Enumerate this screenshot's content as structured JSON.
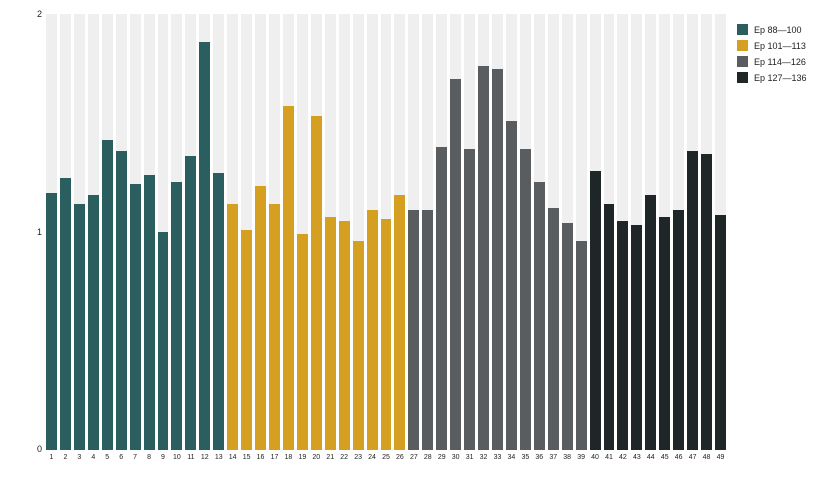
{
  "chart_data": {
    "type": "bar",
    "title": "",
    "xlabel": "",
    "ylabel": "",
    "ylim": [
      0,
      2
    ],
    "yticks": [
      "0",
      "1",
      "2"
    ],
    "grid": false,
    "legend_position": "top-right",
    "background_stripe_color": "#efefef",
    "categories": [
      1,
      2,
      3,
      4,
      5,
      6,
      7,
      8,
      9,
      10,
      11,
      12,
      13,
      14,
      15,
      16,
      17,
      18,
      19,
      20,
      21,
      22,
      23,
      24,
      25,
      26,
      27,
      28,
      29,
      30,
      31,
      32,
      33,
      34,
      35,
      36,
      37,
      38,
      39,
      40,
      41,
      42,
      43,
      44,
      45,
      46,
      47,
      48,
      49
    ],
    "values": [
      1.18,
      1.25,
      1.13,
      1.17,
      1.42,
      1.37,
      1.22,
      1.26,
      1.0,
      1.23,
      1.35,
      1.87,
      1.27,
      1.13,
      1.01,
      1.21,
      1.13,
      1.58,
      0.99,
      1.53,
      1.07,
      1.05,
      0.96,
      1.1,
      1.06,
      1.17,
      1.1,
      1.1,
      1.39,
      1.7,
      1.38,
      1.76,
      1.75,
      1.51,
      1.38,
      1.23,
      1.11,
      1.04,
      0.96,
      1.28,
      1.13,
      1.05,
      1.03,
      1.17,
      1.07,
      1.1,
      1.37,
      1.36,
      1.08
    ],
    "groups": [
      {
        "label": "Ep 88—100",
        "color": "#2b5f5f",
        "start": 1,
        "end": 13
      },
      {
        "label": "Ep 101—113",
        "color": "#d5a021",
        "start": 14,
        "end": 26
      },
      {
        "label": "Ep 114—126",
        "color": "#595d60",
        "start": 27,
        "end": 39
      },
      {
        "label": "Ep 127—136",
        "color": "#1f2628",
        "start": 40,
        "end": 49
      }
    ]
  },
  "axes": {
    "y_top": "2",
    "y_mid": "1",
    "y_bottom": "0"
  }
}
